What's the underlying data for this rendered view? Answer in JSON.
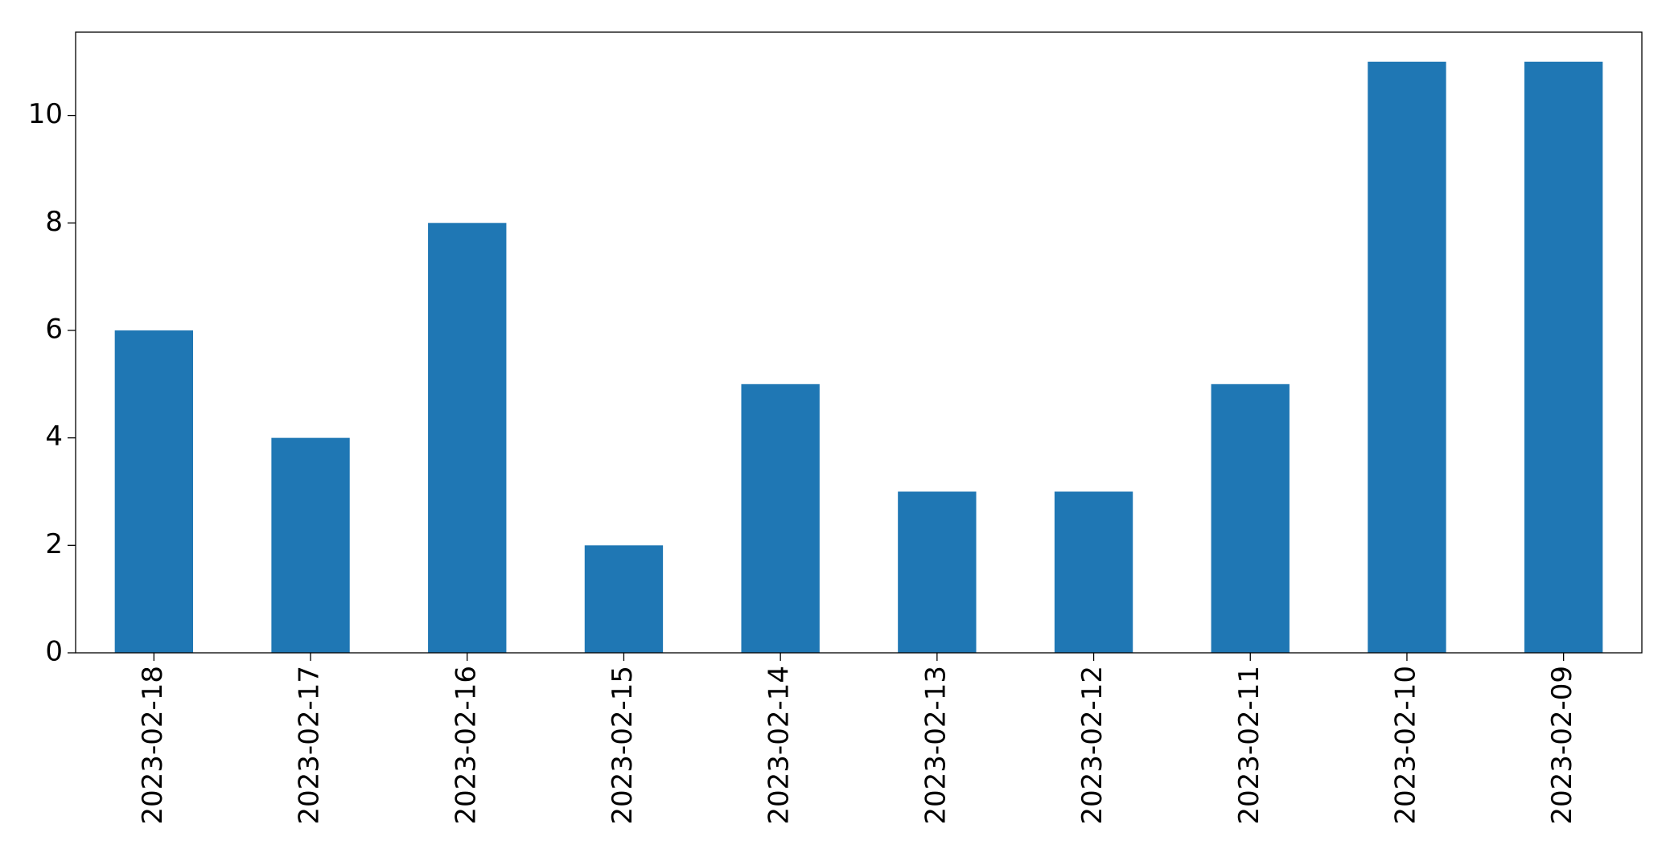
{
  "chart_data": {
    "type": "bar",
    "categories": [
      "2023-02-18",
      "2023-02-17",
      "2023-02-16",
      "2023-02-15",
      "2023-02-14",
      "2023-02-13",
      "2023-02-12",
      "2023-02-11",
      "2023-02-10",
      "2023-02-09"
    ],
    "values": [
      6,
      4,
      8,
      2,
      5,
      3,
      3,
      5,
      11,
      11
    ],
    "color": "#1f77b4",
    "ylim": [
      0,
      11.55
    ],
    "yticks": [
      0,
      2,
      4,
      6,
      8,
      10
    ],
    "grid": false
  }
}
